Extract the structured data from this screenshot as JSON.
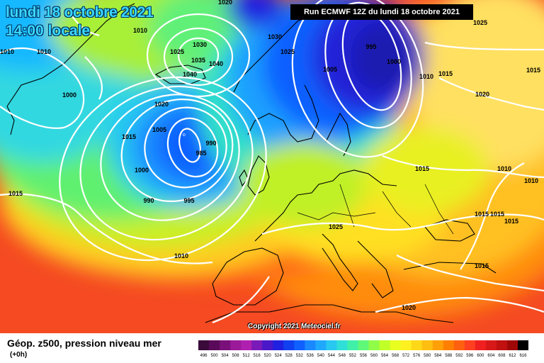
{
  "header": {
    "date_line": "lundi 18 octobre 2021",
    "time_line": "14:00 locale",
    "run_banner": "Run ECMWF 12Z du lundi 18 octobre 2021"
  },
  "copyright": "Copyright 2021 Meteociel.fr",
  "legend": {
    "title": "Géop. z500, pression niveau mer",
    "subtitle": "(+0h)",
    "scale_values": [
      "496",
      "500",
      "504",
      "508",
      "512",
      "516",
      "520",
      "524",
      "528",
      "532",
      "536",
      "540",
      "544",
      "548",
      "552",
      "556",
      "560",
      "564",
      "568",
      "572",
      "576",
      "580",
      "584",
      "588",
      "592",
      "596",
      "600",
      "604",
      "608",
      "612",
      "616"
    ],
    "scale_colors": [
      "#3a0a3a",
      "#5a0a5a",
      "#7a107a",
      "#9a1a9a",
      "#b020b0",
      "#7a1ab8",
      "#4a18c8",
      "#2020e0",
      "#1040f0",
      "#1060ff",
      "#1a88ff",
      "#20a8ff",
      "#28c8f0",
      "#30e0d8",
      "#40f0a8",
      "#60f878",
      "#90fc48",
      "#c0ff28",
      "#e8ff20",
      "#fff020",
      "#ffd818",
      "#ffbe10",
      "#ffa008",
      "#ff8000",
      "#ff6010",
      "#ff4020",
      "#f02020",
      "#d81818",
      "#c01010",
      "#a00808",
      "#000000"
    ]
  },
  "isobar_labels": [
    {
      "text": "1010"
    },
    {
      "text": "1000"
    },
    {
      "text": "1010"
    },
    {
      "text": "1020"
    },
    {
      "text": "1025"
    },
    {
      "text": "1030"
    },
    {
      "text": "1035"
    },
    {
      "text": "1040"
    },
    {
      "text": "1040"
    },
    {
      "text": "1020"
    },
    {
      "text": "1005"
    },
    {
      "text": "990"
    },
    {
      "text": "985"
    },
    {
      "text": "1015"
    },
    {
      "text": "1000"
    },
    {
      "text": "990"
    },
    {
      "text": "995"
    },
    {
      "text": "1015"
    },
    {
      "text": "1010"
    },
    {
      "text": "1030"
    },
    {
      "text": "1025"
    },
    {
      "text": "1005"
    },
    {
      "text": "995"
    },
    {
      "text": "1000"
    },
    {
      "text": "1010"
    },
    {
      "text": "1015"
    },
    {
      "text": "1025"
    },
    {
      "text": "1015"
    },
    {
      "text": "1020"
    },
    {
      "text": "1015"
    },
    {
      "text": "1010"
    },
    {
      "text": "1010"
    },
    {
      "text": "1015"
    },
    {
      "text": "1015"
    },
    {
      "text": "1015"
    },
    {
      "text": "1025"
    },
    {
      "text": "1015"
    },
    {
      "text": "1020"
    },
    {
      "text": "1010"
    }
  ],
  "colors": {
    "title_cyan": "#3ad8ff",
    "isobar": "#ffffff",
    "coast": "#000000"
  }
}
